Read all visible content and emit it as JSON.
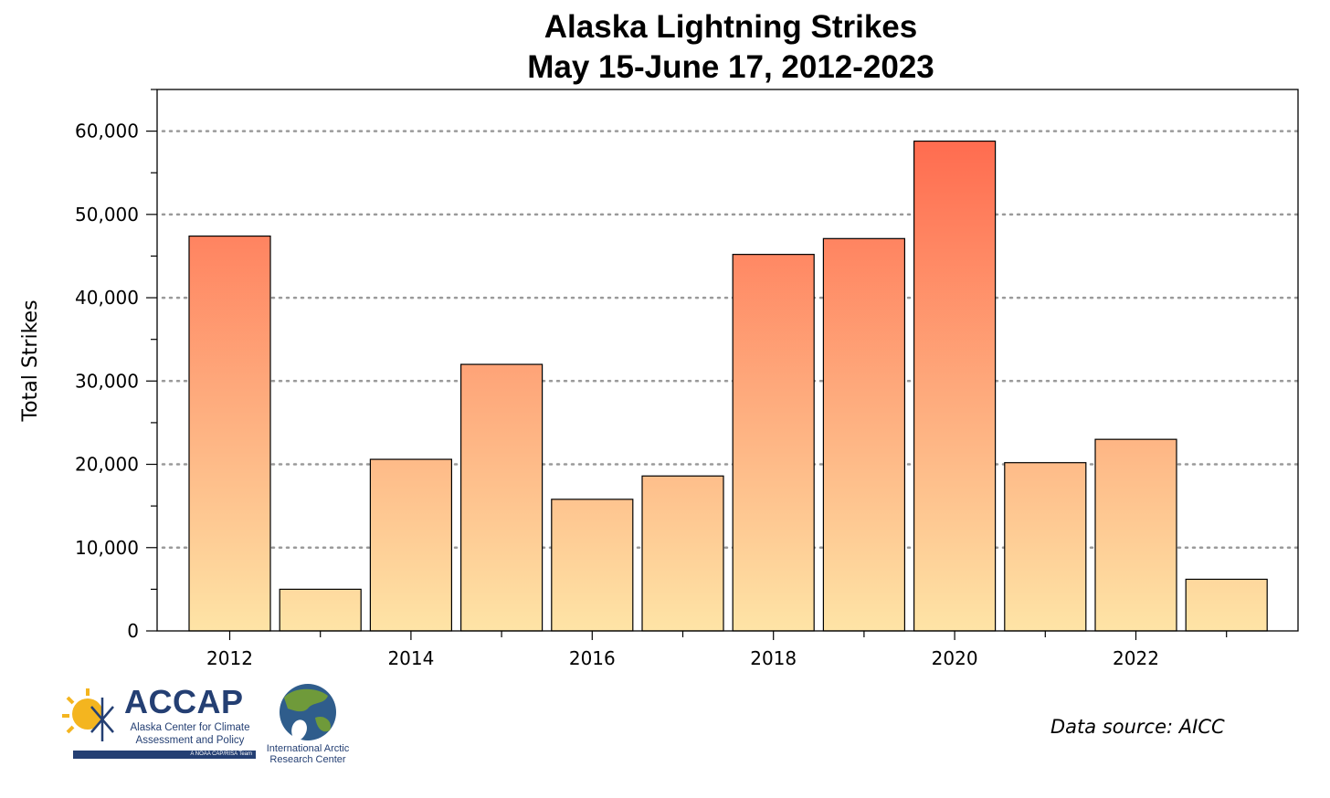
{
  "chart_data": {
    "type": "bar",
    "title": [
      "Alaska Lightning Strikes",
      "May 15-June 17, 2012-2023"
    ],
    "ylabel": "Total Strikes",
    "xlabel": "",
    "categories": [
      "2012",
      "2013",
      "2014",
      "2015",
      "2016",
      "2017",
      "2018",
      "2019",
      "2020",
      "2021",
      "2022",
      "2023"
    ],
    "x_tick_labels": [
      "2012",
      "2014",
      "2016",
      "2018",
      "2020",
      "2022"
    ],
    "values": [
      47400,
      5000,
      20600,
      32000,
      15800,
      18600,
      45200,
      47100,
      58800,
      20200,
      23000,
      6200
    ],
    "ylim": [
      0,
      65000
    ],
    "y_ticks": [
      0,
      10000,
      20000,
      30000,
      40000,
      50000,
      60000
    ],
    "y_tick_labels": [
      "0",
      "10,000",
      "20,000",
      "30,000",
      "40,000",
      "50,000",
      "60,000"
    ],
    "grid": "dotted horizontal at major ticks",
    "bar_gradient": {
      "top": "#ff6a4e",
      "bottom": "#fee4a6"
    }
  },
  "source_note": "Data source: AICC",
  "logos": {
    "accap": {
      "name": "ACCAP",
      "line1": "Alaska Center for Climate",
      "line2": "Assessment and Policy",
      "tag": "A NOAA CAP/RISA Team"
    },
    "iarc": {
      "line1": "International Arctic",
      "line2": "Research Center"
    }
  }
}
